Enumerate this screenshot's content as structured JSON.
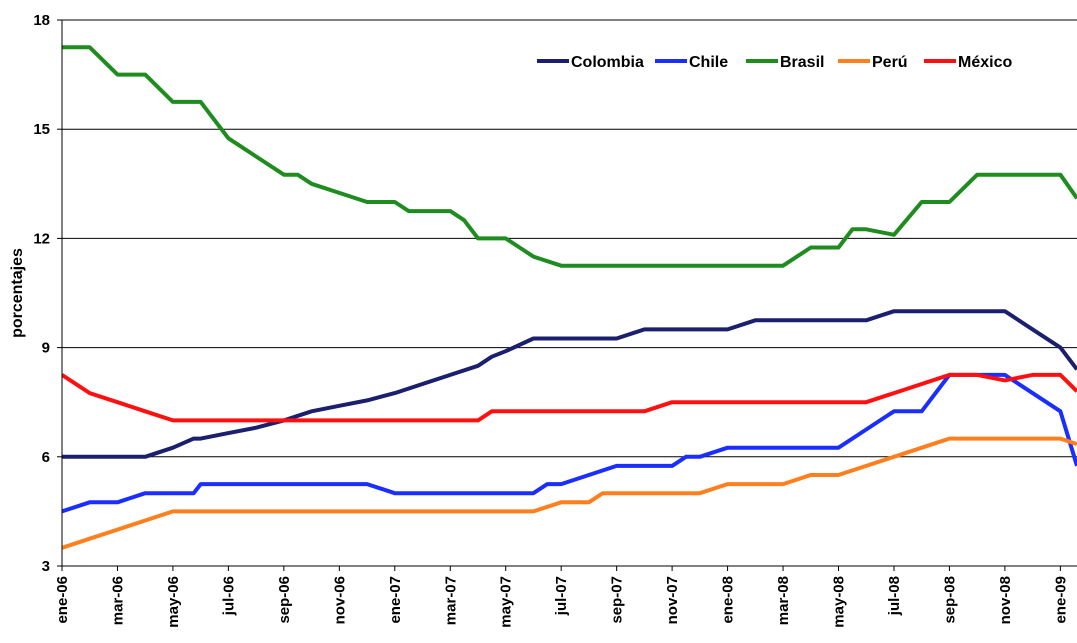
{
  "chart_data": {
    "type": "line",
    "title": "",
    "xlabel": "",
    "ylabel": "porcentajes",
    "ylim": [
      3,
      18
    ],
    "yticks": [
      3,
      6,
      9,
      12,
      15,
      18
    ],
    "ytick_labels": [
      "3",
      "6",
      "9",
      "12",
      "15",
      "18"
    ],
    "grid": "horizontal",
    "legend_position": "top-right",
    "x_tick_labels": [
      "ene-06",
      "mar-06",
      "may-06",
      "jul-06",
      "sep-06",
      "nov-06",
      "ene-07",
      "mar-07",
      "may-07",
      "jul-07",
      "sep-07",
      "nov-07",
      "ene-08",
      "mar-08",
      "may-08",
      "jul-08",
      "sep-08",
      "nov-08",
      "ene-09"
    ],
    "x_tick_months": [
      0,
      2,
      4,
      6,
      8,
      10,
      12,
      14,
      16,
      18,
      20,
      22,
      24,
      26,
      28,
      30,
      32,
      34,
      36
    ],
    "x_range_months": [
      0,
      36.6
    ],
    "series": [
      {
        "name": "Colombia",
        "color": "#1a1f6e",
        "points": [
          [
            0,
            6.0
          ],
          [
            2,
            6.0
          ],
          [
            3,
            6.0
          ],
          [
            4,
            6.25
          ],
          [
            4.75,
            6.5
          ],
          [
            5,
            6.5
          ],
          [
            6,
            6.65
          ],
          [
            7,
            6.8
          ],
          [
            8,
            7.0
          ],
          [
            9,
            7.25
          ],
          [
            10,
            7.4
          ],
          [
            11,
            7.55
          ],
          [
            12,
            7.75
          ],
          [
            13,
            8.0
          ],
          [
            14,
            8.25
          ],
          [
            15,
            8.5
          ],
          [
            15.5,
            8.75
          ],
          [
            16,
            8.9
          ],
          [
            17,
            9.25
          ],
          [
            19,
            9.25
          ],
          [
            20,
            9.25
          ],
          [
            21,
            9.5
          ],
          [
            23,
            9.5
          ],
          [
            24,
            9.5
          ],
          [
            25,
            9.75
          ],
          [
            28,
            9.75
          ],
          [
            29,
            9.75
          ],
          [
            30,
            10.0
          ],
          [
            34,
            10.0
          ],
          [
            35,
            9.5
          ],
          [
            36,
            9.0
          ],
          [
            36.6,
            8.4
          ]
        ]
      },
      {
        "name": "Chile",
        "color": "#1a2eff",
        "points": [
          [
            0,
            4.5
          ],
          [
            1,
            4.75
          ],
          [
            2,
            4.75
          ],
          [
            3,
            5.0
          ],
          [
            4,
            5.0
          ],
          [
            4.75,
            5.0
          ],
          [
            5,
            5.25
          ],
          [
            11,
            5.25
          ],
          [
            12,
            5.0
          ],
          [
            15,
            5.0
          ],
          [
            16,
            5.0
          ],
          [
            17,
            5.0
          ],
          [
            17.5,
            5.25
          ],
          [
            18,
            5.25
          ],
          [
            19,
            5.5
          ],
          [
            20,
            5.75
          ],
          [
            22,
            5.75
          ],
          [
            22.5,
            6.0
          ],
          [
            23,
            6.0
          ],
          [
            24,
            6.25
          ],
          [
            28,
            6.25
          ],
          [
            29,
            6.75
          ],
          [
            30,
            7.25
          ],
          [
            31,
            7.25
          ],
          [
            32,
            8.25
          ],
          [
            33,
            8.25
          ],
          [
            34,
            8.25
          ],
          [
            36,
            7.25
          ],
          [
            36.6,
            5.75
          ]
        ]
      },
      {
        "name": "Brasil",
        "color": "#1e8c1e",
        "points": [
          [
            0,
            17.25
          ],
          [
            1,
            17.25
          ],
          [
            2,
            16.5
          ],
          [
            3,
            16.5
          ],
          [
            4,
            15.75
          ],
          [
            5,
            15.75
          ],
          [
            5.5,
            15.25
          ],
          [
            6,
            14.75
          ],
          [
            7,
            14.25
          ],
          [
            8,
            13.75
          ],
          [
            8.5,
            13.75
          ],
          [
            9,
            13.5
          ],
          [
            10,
            13.25
          ],
          [
            11,
            13.0
          ],
          [
            12,
            13.0
          ],
          [
            12.5,
            12.75
          ],
          [
            13,
            12.75
          ],
          [
            14,
            12.75
          ],
          [
            14.5,
            12.5
          ],
          [
            15,
            12.0
          ],
          [
            16,
            12.0
          ],
          [
            16.5,
            11.75
          ],
          [
            17,
            11.5
          ],
          [
            18,
            11.25
          ],
          [
            26,
            11.25
          ],
          [
            27,
            11.75
          ],
          [
            28,
            11.75
          ],
          [
            28.5,
            12.25
          ],
          [
            29,
            12.25
          ],
          [
            30,
            12.1
          ],
          [
            31,
            13.0
          ],
          [
            31.5,
            13.0
          ],
          [
            32,
            13.0
          ],
          [
            33,
            13.75
          ],
          [
            36,
            13.75
          ],
          [
            36.6,
            13.1
          ]
        ]
      },
      {
        "name": "Perú",
        "color": "#ff7f1f",
        "points": [
          [
            0,
            3.5
          ],
          [
            1,
            3.75
          ],
          [
            2,
            4.0
          ],
          [
            3,
            4.25
          ],
          [
            4,
            4.5
          ],
          [
            17,
            4.5
          ],
          [
            18,
            4.75
          ],
          [
            19,
            4.75
          ],
          [
            19.5,
            5.0
          ],
          [
            22,
            5.0
          ],
          [
            23,
            5.0
          ],
          [
            24,
            5.25
          ],
          [
            26,
            5.25
          ],
          [
            27,
            5.5
          ],
          [
            28,
            5.5
          ],
          [
            29,
            5.75
          ],
          [
            30,
            6.0
          ],
          [
            31,
            6.25
          ],
          [
            32,
            6.5
          ],
          [
            36,
            6.5
          ],
          [
            36.6,
            6.35
          ]
        ]
      },
      {
        "name": "México",
        "color": "#ff1010",
        "points": [
          [
            0,
            8.25
          ],
          [
            1,
            7.75
          ],
          [
            2,
            7.5
          ],
          [
            3,
            7.25
          ],
          [
            4,
            7.0
          ],
          [
            15,
            7.0
          ],
          [
            15.5,
            7.25
          ],
          [
            21,
            7.25
          ],
          [
            22,
            7.5
          ],
          [
            29,
            7.5
          ],
          [
            30,
            7.75
          ],
          [
            31,
            8.0
          ],
          [
            32,
            8.25
          ],
          [
            33,
            8.25
          ],
          [
            34,
            8.1
          ],
          [
            35,
            8.25
          ],
          [
            36,
            8.25
          ],
          [
            36.6,
            7.8
          ]
        ]
      }
    ]
  }
}
